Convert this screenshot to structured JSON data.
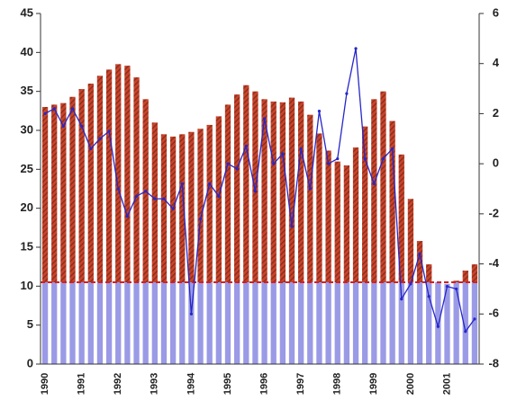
{
  "chart_data": {
    "type": "bar",
    "categories": [
      "1990",
      null,
      null,
      null,
      "1991",
      null,
      null,
      null,
      "1992",
      null,
      null,
      null,
      "1993",
      null,
      null,
      null,
      "1994",
      null,
      null,
      null,
      "1995",
      null,
      null,
      null,
      "1996",
      null,
      null,
      null,
      "1997",
      null,
      null,
      null,
      "1998",
      null,
      null,
      null,
      "1999",
      null,
      null,
      null,
      "2000",
      null,
      null,
      null,
      "2001",
      null,
      null,
      null
    ],
    "values": [
      33,
      33.3,
      33.5,
      34.3,
      35.3,
      36,
      37,
      37.8,
      38.5,
      38.3,
      36.8,
      34,
      31,
      29.5,
      29.2,
      29.5,
      29.8,
      30.2,
      30.7,
      31.8,
      33.3,
      34.6,
      35.8,
      35,
      34,
      33.7,
      33.6,
      34.2,
      33.7,
      32,
      29.6,
      27.4,
      26,
      25.5,
      27.8,
      30.5,
      34,
      35,
      31.2,
      26.9,
      21.2,
      15.8,
      12.8,
      10.5,
      10.3,
      10.7,
      12,
      12.8
    ],
    "color": "#c8442a",
    "below_color": "#9a9ae6",
    "reference": 10.5,
    "reference_color": "#d42020",
    "line": {
      "color": "#2626c8",
      "axis": "y2",
      "values": [
        2.0,
        2.2,
        1.5,
        2.2,
        1.5,
        0.6,
        1.0,
        1.3,
        -1.0,
        -2.1,
        -1.3,
        -1.1,
        -1.4,
        -1.4,
        -1.8,
        -0.8,
        -6.0,
        -2.2,
        -0.8,
        -1.3,
        0.0,
        -0.2,
        0.7,
        -1.1,
        1.8,
        0.0,
        0.4,
        -2.5,
        0.6,
        -1.0,
        2.1,
        0.0,
        0.2,
        2.8,
        4.6,
        0.2,
        -0.8,
        0.2,
        0.6,
        -5.4,
        -4.8,
        -3.6,
        -5.3,
        -6.5,
        -4.9,
        -5.0,
        -6.7,
        -6.2
      ]
    },
    "ylim": [
      0,
      45
    ],
    "yticks": [
      0,
      5,
      10,
      15,
      20,
      25,
      30,
      35,
      40,
      45
    ],
    "y2lim": [
      -8,
      6
    ],
    "y2ticks": [
      -8,
      -6,
      -4,
      -2,
      0,
      2,
      4,
      6
    ]
  }
}
